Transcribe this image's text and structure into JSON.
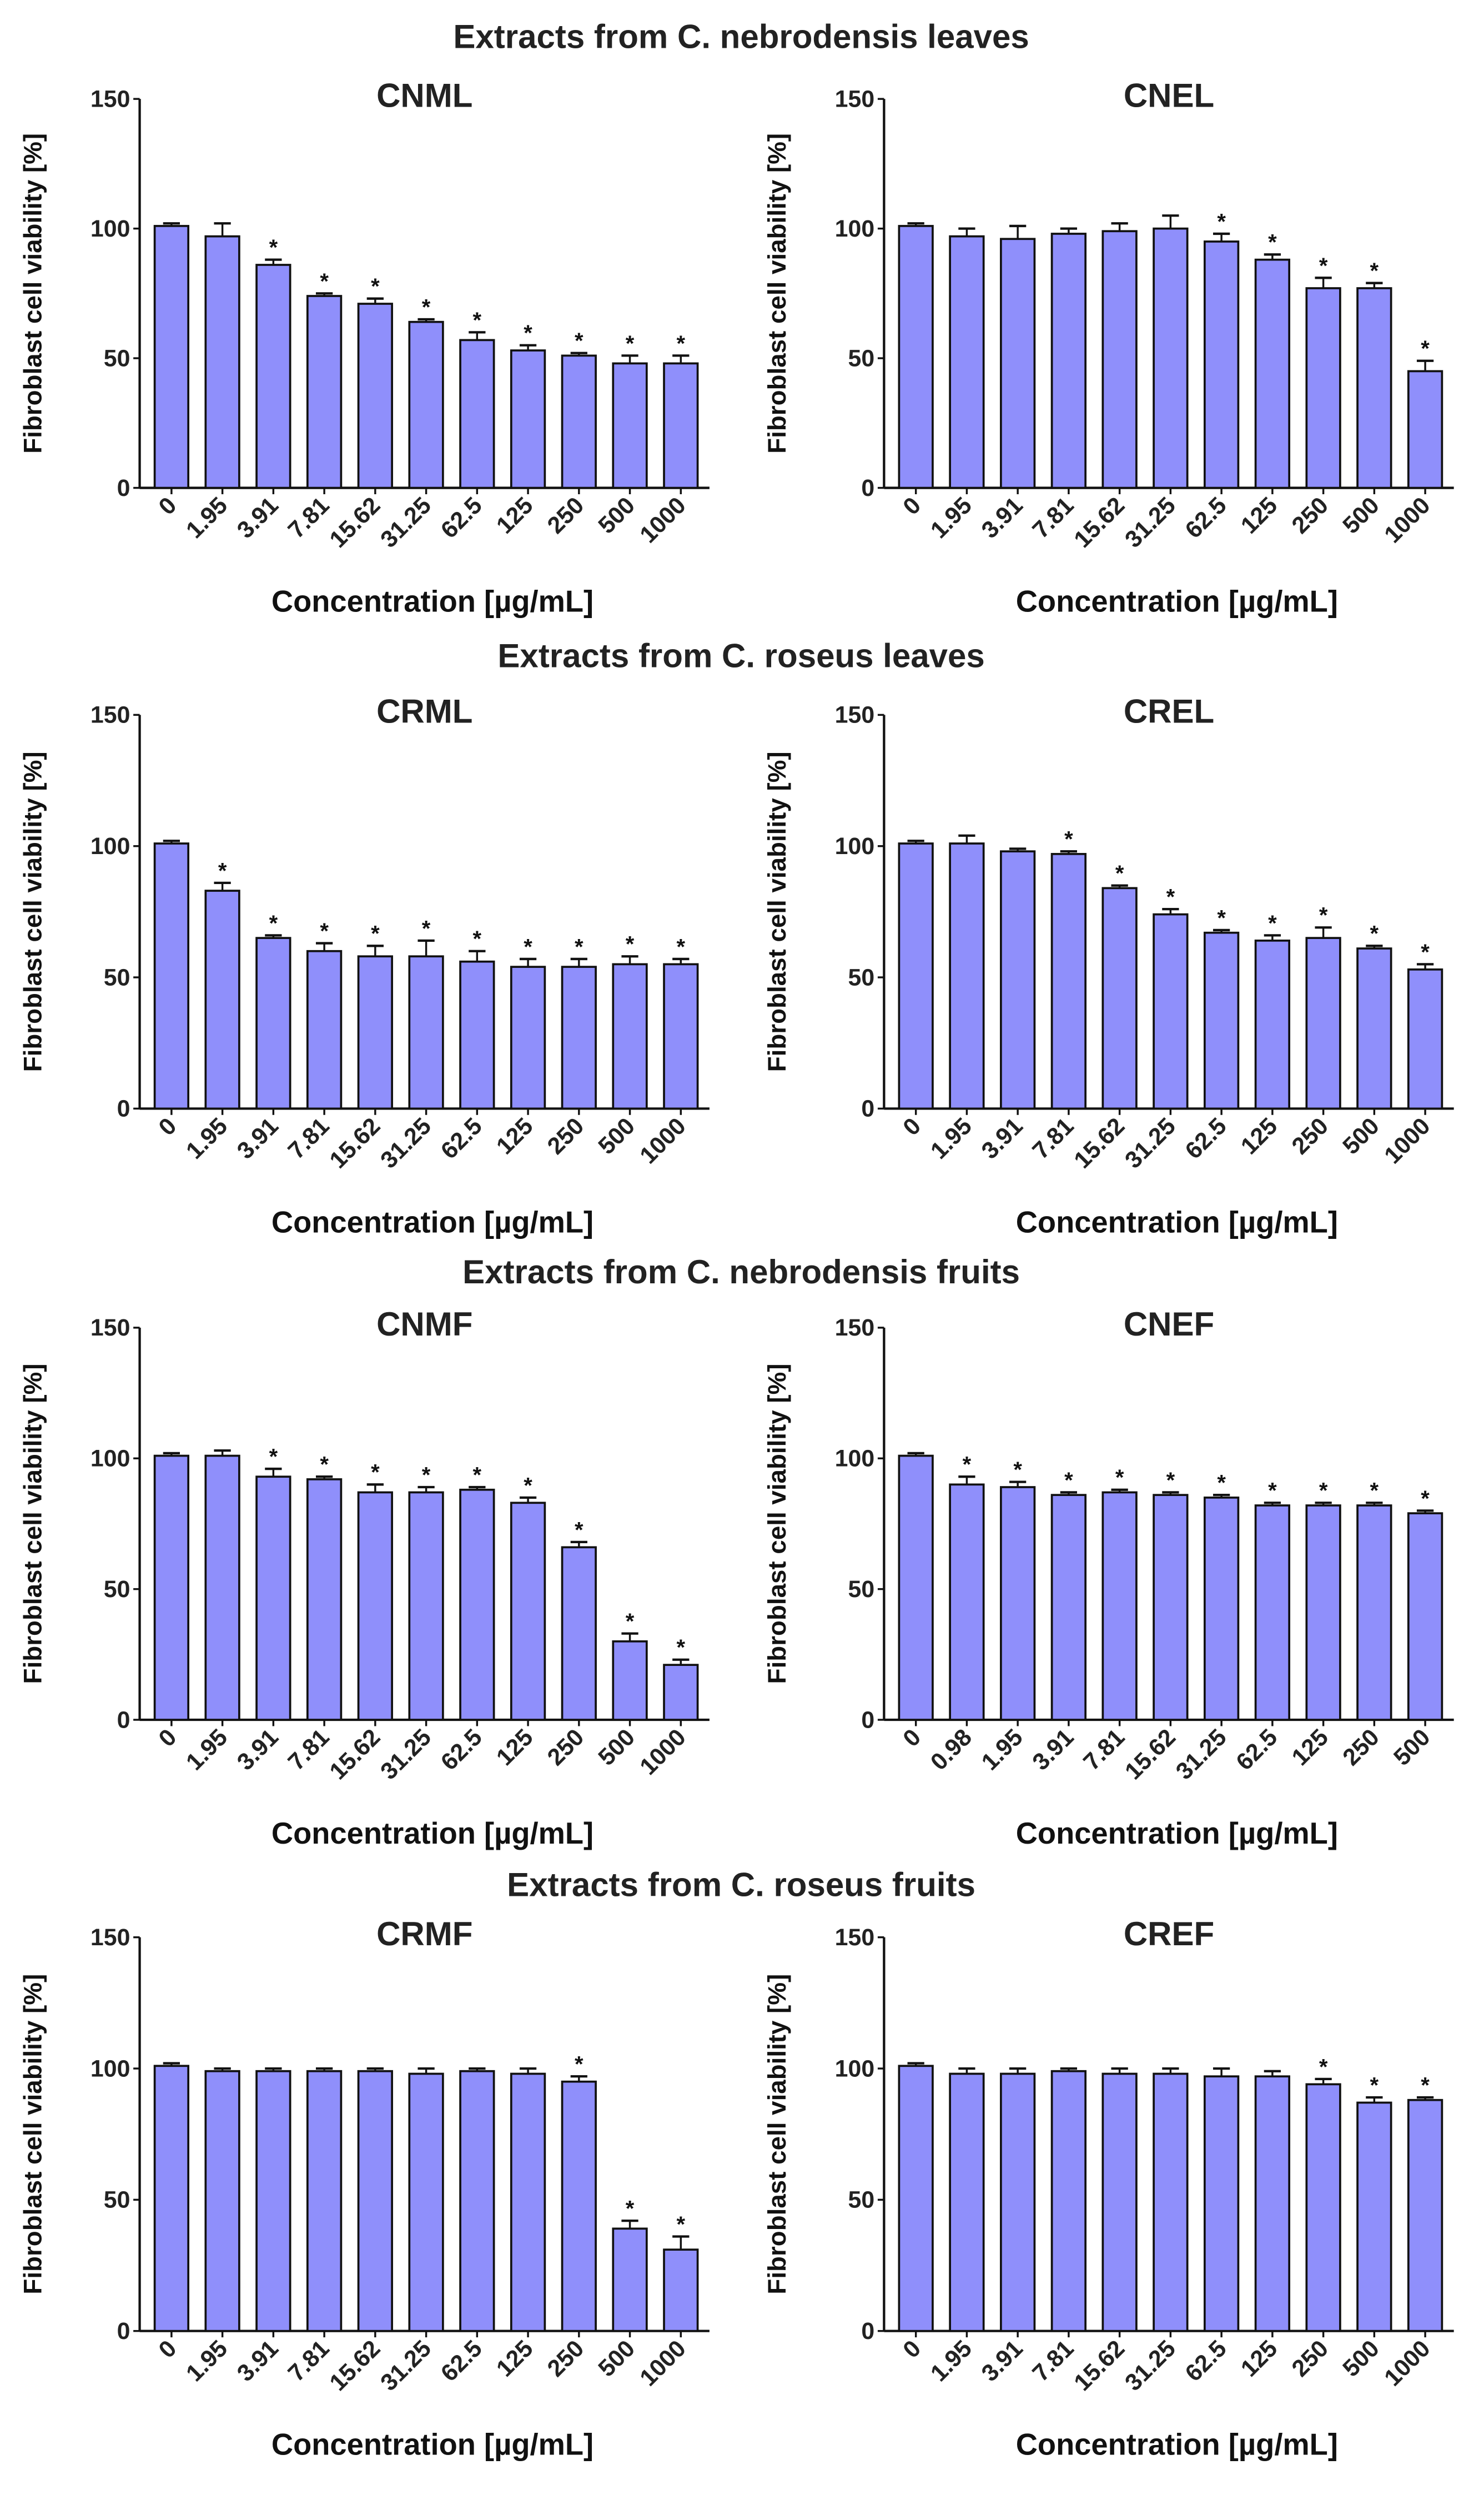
{
  "section_titles": [
    "Extracts from C. nebrodensis leaves",
    "Extracts from C. roseus leaves",
    "Extracts from C. nebrodensis fruits",
    "Extracts from C. roseus fruits"
  ],
  "colors": {
    "bar": "#8f8ffb",
    "outline": "#111111"
  },
  "chart_data": [
    {
      "type": "bar",
      "title": "CNML",
      "xlabel": "Concentration [µg/mL]",
      "ylabel": "Fibroblast cell viability [%]",
      "ylim": [
        0,
        150
      ],
      "yticks": [
        0,
        50,
        100,
        150
      ],
      "categories": [
        "0",
        "1.95",
        "3.91",
        "7.81",
        "15.62",
        "31.25",
        "62.5",
        "125",
        "250",
        "500",
        "1000"
      ],
      "values": [
        101,
        97,
        86,
        74,
        71,
        64,
        57,
        53,
        51,
        48,
        48
      ],
      "errors": [
        1,
        5,
        2,
        1,
        2,
        1,
        3,
        2,
        1,
        3,
        3
      ],
      "significant": [
        false,
        false,
        true,
        true,
        true,
        true,
        true,
        true,
        true,
        true,
        true
      ]
    },
    {
      "type": "bar",
      "title": "CNEL",
      "xlabel": "Concentration [µg/mL]",
      "ylabel": "Fibroblast cell viability [%]",
      "ylim": [
        0,
        150
      ],
      "yticks": [
        0,
        50,
        100,
        150
      ],
      "categories": [
        "0",
        "1.95",
        "3.91",
        "7.81",
        "15.62",
        "31.25",
        "62.5",
        "125",
        "250",
        "500",
        "1000"
      ],
      "values": [
        101,
        97,
        96,
        98,
        99,
        100,
        95,
        88,
        77,
        77,
        45
      ],
      "errors": [
        1,
        3,
        5,
        2,
        3,
        5,
        3,
        2,
        4,
        2,
        4
      ],
      "significant": [
        false,
        false,
        false,
        false,
        false,
        false,
        true,
        true,
        true,
        true,
        true
      ]
    },
    {
      "type": "bar",
      "title": "CRML",
      "xlabel": "Concentration [µg/mL]",
      "ylabel": "Fibroblast cell viability [%]",
      "ylim": [
        0,
        150
      ],
      "yticks": [
        0,
        50,
        100,
        150
      ],
      "categories": [
        "0",
        "1.95",
        "3.91",
        "7.81",
        "15.62",
        "31.25",
        "62.5",
        "125",
        "250",
        "500",
        "1000"
      ],
      "values": [
        101,
        83,
        65,
        60,
        58,
        58,
        56,
        54,
        54,
        55,
        55
      ],
      "errors": [
        1,
        3,
        1,
        3,
        4,
        6,
        4,
        3,
        3,
        3,
        2
      ],
      "significant": [
        false,
        true,
        true,
        true,
        true,
        true,
        true,
        true,
        true,
        true,
        true
      ]
    },
    {
      "type": "bar",
      "title": "CREL",
      "xlabel": "Concentration [µg/mL]",
      "ylabel": "Fibroblast cell viability [%]",
      "ylim": [
        0,
        150
      ],
      "yticks": [
        0,
        50,
        100,
        150
      ],
      "categories": [
        "0",
        "1.95",
        "3.91",
        "7.81",
        "15.62",
        "31.25",
        "62.5",
        "125",
        "250",
        "500",
        "1000"
      ],
      "values": [
        101,
        101,
        98,
        97,
        84,
        74,
        67,
        64,
        65,
        61,
        53
      ],
      "errors": [
        1,
        3,
        1,
        1,
        1,
        2,
        1,
        2,
        4,
        1,
        2
      ],
      "significant": [
        false,
        false,
        false,
        true,
        true,
        true,
        true,
        true,
        true,
        true,
        true
      ]
    },
    {
      "type": "bar",
      "title": "CNMF",
      "xlabel": "Concentration [µg/mL]",
      "ylabel": "Fibroblast cell viability [%]",
      "ylim": [
        0,
        150
      ],
      "yticks": [
        0,
        50,
        100,
        150
      ],
      "categories": [
        "0",
        "1.95",
        "3.91",
        "7.81",
        "15.62",
        "31.25",
        "62.5",
        "125",
        "250",
        "500",
        "1000"
      ],
      "values": [
        101,
        101,
        93,
        92,
        87,
        87,
        88,
        83,
        66,
        30,
        21
      ],
      "errors": [
        1,
        2,
        3,
        1,
        3,
        2,
        1,
        2,
        2,
        3,
        2
      ],
      "significant": [
        false,
        false,
        true,
        true,
        true,
        true,
        true,
        true,
        true,
        true,
        true
      ]
    },
    {
      "type": "bar",
      "title": "CNEF",
      "xlabel": "Concentration [µg/mL]",
      "ylabel": "Fibroblast cell viability [%]",
      "ylim": [
        0,
        150
      ],
      "yticks": [
        0,
        50,
        100,
        150
      ],
      "categories": [
        "0",
        "0.98",
        "1.95",
        "3.91",
        "7.81",
        "15.62",
        "31.25",
        "62.5",
        "125",
        "250",
        "500"
      ],
      "values": [
        101,
        90,
        89,
        86,
        87,
        86,
        85,
        82,
        82,
        82,
        79
      ],
      "errors": [
        1,
        3,
        2,
        1,
        1,
        1,
        1,
        1,
        1,
        1,
        1
      ],
      "significant": [
        false,
        true,
        true,
        true,
        true,
        true,
        true,
        true,
        true,
        true,
        true
      ]
    },
    {
      "type": "bar",
      "title": "CRMF",
      "xlabel": "Concentration [µg/mL]",
      "ylabel": "Fibroblast cell viability [%]",
      "ylim": [
        0,
        150
      ],
      "yticks": [
        0,
        50,
        100,
        150
      ],
      "categories": [
        "0",
        "1.95",
        "3.91",
        "7.81",
        "15.62",
        "31.25",
        "62.5",
        "125",
        "250",
        "500",
        "1000"
      ],
      "values": [
        101,
        99,
        99,
        99,
        99,
        98,
        99,
        98,
        95,
        39,
        31
      ],
      "errors": [
        1,
        1,
        1,
        1,
        1,
        2,
        1,
        2,
        2,
        3,
        5
      ],
      "significant": [
        false,
        false,
        false,
        false,
        false,
        false,
        false,
        false,
        true,
        true,
        true
      ]
    },
    {
      "type": "bar",
      "title": "CREF",
      "xlabel": "Concentration [µg/mL]",
      "ylabel": "Fibroblast cell viability [%]",
      "ylim": [
        0,
        150
      ],
      "yticks": [
        0,
        50,
        100,
        150
      ],
      "categories": [
        "0",
        "1.95",
        "3.91",
        "7.81",
        "15.62",
        "31.25",
        "62.5",
        "125",
        "250",
        "500",
        "1000"
      ],
      "values": [
        101,
        98,
        98,
        99,
        98,
        98,
        97,
        97,
        94,
        87,
        88
      ],
      "errors": [
        1,
        2,
        2,
        1,
        2,
        2,
        3,
        2,
        2,
        2,
        1
      ],
      "significant": [
        false,
        false,
        false,
        false,
        false,
        false,
        false,
        false,
        true,
        true,
        true
      ]
    }
  ]
}
